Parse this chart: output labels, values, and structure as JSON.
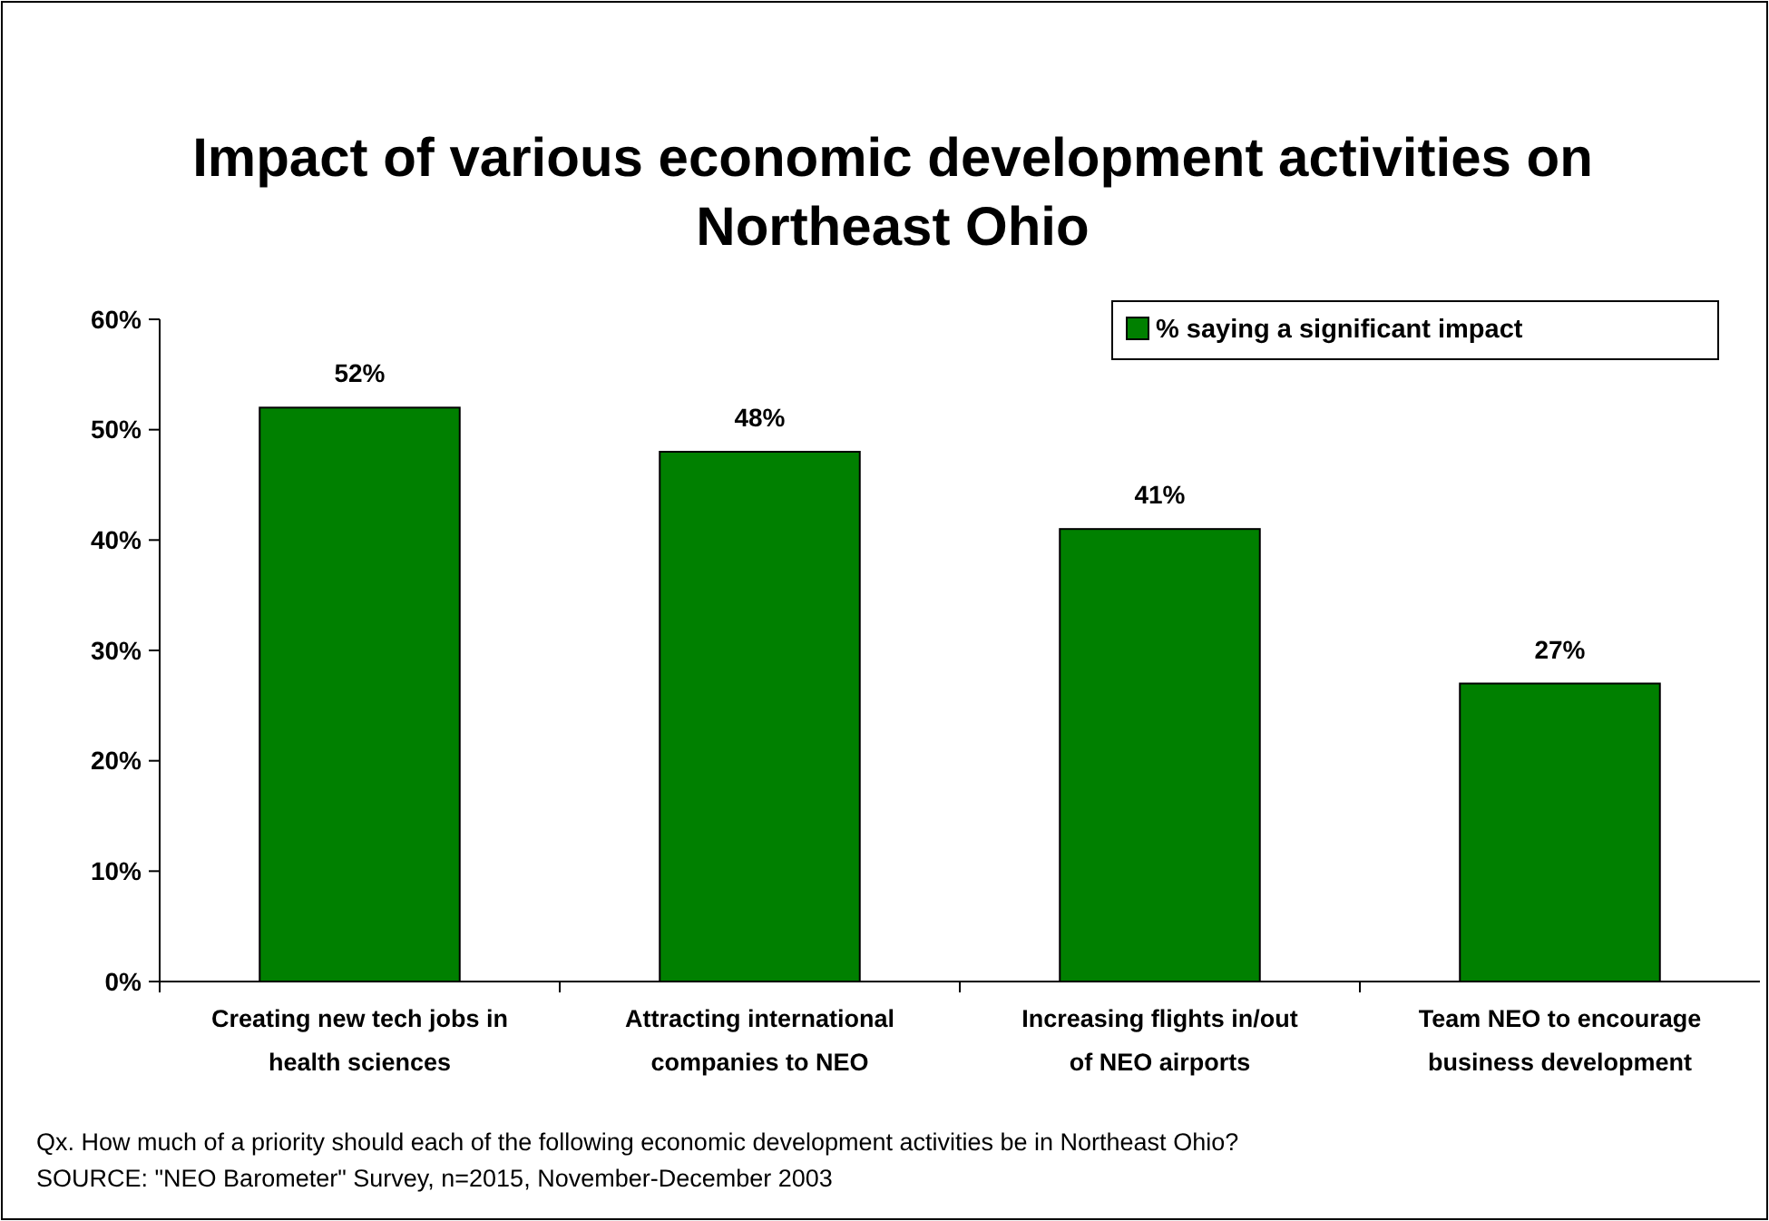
{
  "chart_data": {
    "type": "bar",
    "title": "Impact of various economic development activities on Northeast Ohio",
    "categories": [
      "Creating new tech jobs in health sciences",
      "Attracting international companies to NEO",
      "Increasing flights in/out of NEO airports",
      "Team NEO to encourage business development"
    ],
    "series": [
      {
        "name": "% saying a significant impact",
        "color": "#008000",
        "values": [
          52,
          48,
          41,
          27
        ]
      }
    ],
    "ylim": [
      0,
      60
    ],
    "yticks": [
      {
        "value": 0,
        "label": "0%"
      },
      {
        "value": 10,
        "label": "10%"
      },
      {
        "value": 20,
        "label": "20%"
      },
      {
        "value": 30,
        "label": "30%"
      },
      {
        "value": 40,
        "label": "40%"
      },
      {
        "value": 50,
        "label": "50%"
      },
      {
        "value": 60,
        "label": "60%"
      }
    ],
    "value_labels": [
      "52%",
      "48%",
      "41%",
      "27%"
    ],
    "legend": "top right",
    "grid": false,
    "annotations": [
      "Qx.  How much of a priority should each of the following economic development activities be in Northeast Ohio?",
      "SOURCE:  \"NEO Barometer\" Survey, n=2015, November-December 2003"
    ]
  }
}
